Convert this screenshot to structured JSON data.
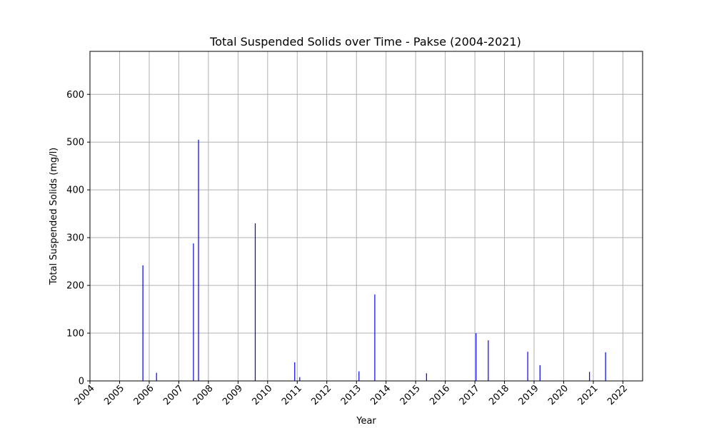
{
  "chart_data": {
    "type": "bar",
    "title": "Total Suspended Solids over Time - Pakse (2004-2021)",
    "xlabel": "Year",
    "ylabel": "Total Suspended Solids (mg/l)",
    "x_axis_type": "date",
    "xlim": [
      "2004-01-01",
      "2022-09-01"
    ],
    "ylim": [
      0,
      690
    ],
    "x_ticks": [
      "2004",
      "2005",
      "2006",
      "2007",
      "2008",
      "2009",
      "2010",
      "2011",
      "2012",
      "2013",
      "2014",
      "2015",
      "2016",
      "2017",
      "2018",
      "2019",
      "2020",
      "2021",
      "2022"
    ],
    "y_ticks": [
      0,
      100,
      200,
      300,
      400,
      500,
      600
    ],
    "grid": true,
    "bar_color": "#0000ff",
    "points": [
      {
        "date": "2005-10-15",
        "value": 242
      },
      {
        "date": "2006-04-01",
        "value": 17
      },
      {
        "date": "2007-07-01",
        "value": 288
      },
      {
        "date": "2007-09-01",
        "value": 505
      },
      {
        "date": "2009-08-01",
        "value": 330
      },
      {
        "date": "2010-12-01",
        "value": 39
      },
      {
        "date": "2011-02-01",
        "value": 8
      },
      {
        "date": "2013-02-01",
        "value": 20
      },
      {
        "date": "2013-08-15",
        "value": 181
      },
      {
        "date": "2015-05-15",
        "value": 16
      },
      {
        "date": "2017-01-15",
        "value": 100
      },
      {
        "date": "2017-06-15",
        "value": 85
      },
      {
        "date": "2018-10-15",
        "value": 61
      },
      {
        "date": "2019-03-15",
        "value": 33
      },
      {
        "date": "2020-11-15",
        "value": 19
      },
      {
        "date": "2021-06-01",
        "value": 60
      }
    ]
  }
}
